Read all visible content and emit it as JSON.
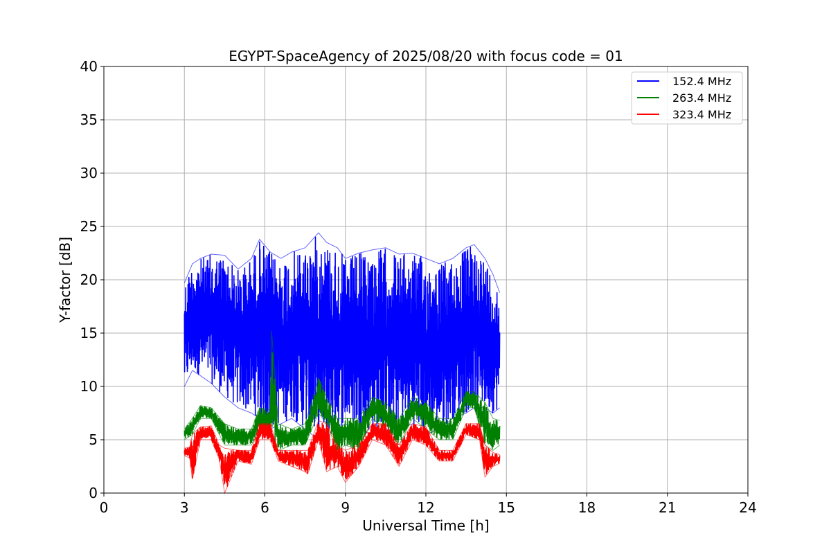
{
  "chart_data": {
    "type": "line",
    "title": "EGYPT-SpaceAgency of 2025/08/20 with focus code = 01",
    "xlabel": "Universal Time [h]",
    "ylabel": "Y-factor [dB]",
    "xlim": [
      0,
      24
    ],
    "ylim": [
      0,
      40
    ],
    "xticks": [
      0,
      3,
      6,
      9,
      12,
      15,
      18,
      21,
      24
    ],
    "yticks": [
      0,
      5,
      10,
      15,
      20,
      25,
      30,
      35,
      40
    ],
    "grid": true,
    "legend_position": "top-right",
    "series": [
      {
        "name": "152.4 MHz",
        "color": "#0000ff",
        "envelope": {
          "x": [
            3.0,
            3.3,
            3.6,
            4.0,
            4.5,
            5.0,
            5.5,
            5.8,
            6.2,
            6.6,
            7.0,
            7.5,
            8.0,
            8.3,
            8.7,
            9.0,
            9.5,
            10.0,
            10.5,
            11.0,
            11.5,
            12.0,
            12.5,
            13.0,
            13.5,
            13.8,
            14.2,
            14.5,
            14.75
          ],
          "upper": [
            19.7,
            21.5,
            22.0,
            22.4,
            22.3,
            21.0,
            22.0,
            23.8,
            22.6,
            22.0,
            22.6,
            23.0,
            24.4,
            23.5,
            23.0,
            22.0,
            22.5,
            22.8,
            23.0,
            22.4,
            22.5,
            22.0,
            21.5,
            22.0,
            23.0,
            23.3,
            22.0,
            20.5,
            18.8
          ],
          "lower": [
            10.0,
            11.5,
            11.0,
            10.3,
            9.0,
            8.0,
            7.5,
            7.0,
            6.0,
            6.5,
            7.0,
            6.0,
            5.0,
            5.5,
            6.0,
            6.5,
            6.0,
            5.5,
            6.0,
            6.0,
            6.5,
            5.5,
            6.0,
            7.0,
            7.5,
            8.0,
            8.0,
            7.5,
            8.0
          ]
        }
      },
      {
        "name": "263.4 MHz",
        "color": "#008000",
        "envelope": {
          "x": [
            3.0,
            3.3,
            3.6,
            4.0,
            4.5,
            5.0,
            5.5,
            5.8,
            6.2,
            6.25,
            6.5,
            7.0,
            7.5,
            8.0,
            8.3,
            8.7,
            9.0,
            9.5,
            10.0,
            10.5,
            11.0,
            11.5,
            12.0,
            12.5,
            13.0,
            13.5,
            13.8,
            14.2,
            14.5,
            14.75
          ],
          "upper": [
            6.0,
            7.0,
            8.2,
            8.0,
            6.5,
            6.0,
            6.0,
            8.0,
            7.8,
            15.2,
            6.5,
            6.0,
            6.5,
            10.8,
            9.0,
            7.0,
            7.0,
            7.0,
            9.0,
            8.5,
            7.0,
            9.0,
            8.5,
            7.0,
            7.0,
            9.5,
            9.5,
            8.5,
            7.0,
            6.8
          ],
          "lower": [
            5.0,
            5.5,
            7.0,
            7.0,
            4.5,
            4.5,
            4.5,
            6.0,
            6.0,
            5.5,
            4.0,
            4.5,
            4.5,
            7.5,
            6.5,
            4.0,
            4.5,
            4.0,
            7.0,
            6.0,
            4.5,
            7.0,
            6.0,
            5.0,
            5.0,
            8.0,
            8.0,
            4.5,
            4.0,
            4.5
          ]
        }
      },
      {
        "name": "323.4 MHz",
        "color": "#ff0000",
        "envelope": {
          "x": [
            3.0,
            3.2,
            3.3,
            3.6,
            4.0,
            4.3,
            4.5,
            5.0,
            5.5,
            5.8,
            6.2,
            6.5,
            7.0,
            7.5,
            7.6,
            8.0,
            8.3,
            8.7,
            9.0,
            9.5,
            10.0,
            10.5,
            11.0,
            11.5,
            12.0,
            12.5,
            13.0,
            13.5,
            14.0,
            14.2,
            14.5,
            14.75
          ],
          "upper": [
            4.2,
            4.3,
            5.5,
            6.2,
            6.3,
            4.5,
            4.2,
            4.0,
            4.0,
            6.5,
            6.5,
            4.0,
            4.0,
            4.0,
            4.0,
            6.8,
            6.5,
            4.5,
            4.0,
            4.5,
            6.5,
            6.5,
            4.5,
            6.5,
            6.2,
            4.0,
            4.0,
            6.5,
            6.5,
            4.5,
            3.8,
            3.6
          ],
          "lower": [
            3.5,
            3.3,
            1.3,
            5.0,
            5.0,
            3.2,
            0.0,
            3.0,
            2.7,
            5.0,
            5.0,
            3.0,
            2.5,
            2.0,
            1.8,
            5.0,
            2.0,
            2.5,
            1.0,
            2.5,
            5.0,
            4.5,
            2.5,
            5.0,
            4.5,
            3.0,
            3.0,
            5.5,
            5.0,
            1.5,
            2.5,
            2.8
          ]
        }
      }
    ]
  }
}
